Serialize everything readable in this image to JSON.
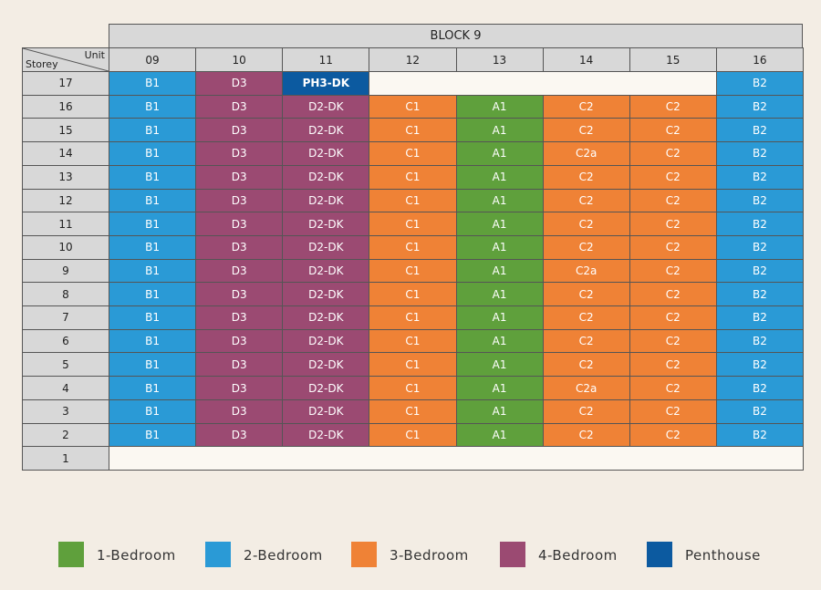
{
  "header": {
    "title": "BLOCK 9",
    "unit_label": "Unit",
    "storey_label": "Storey"
  },
  "columns": [
    "09",
    "10",
    "11",
    "12",
    "13",
    "14",
    "15",
    "16"
  ],
  "rows": [
    {
      "storey": "17",
      "cells": [
        [
          "B1",
          "#2a9ad6"
        ],
        [
          "D3",
          "#9b4a72"
        ],
        [
          "PH3-DK",
          "#0c5aa0"
        ],
        null,
        null,
        null,
        null,
        [
          "B2",
          "#2a9ad6"
        ]
      ]
    },
    {
      "storey": "16",
      "cells": [
        [
          "B1",
          "#2a9ad6"
        ],
        [
          "D3",
          "#9b4a72"
        ],
        [
          "D2-DK",
          "#9b4a72"
        ],
        [
          "C1",
          "#ef8236"
        ],
        [
          "A1",
          "#5fa03c"
        ],
        [
          "C2",
          "#ef8236"
        ],
        [
          "C2",
          "#ef8236"
        ],
        [
          "B2",
          "#2a9ad6"
        ]
      ]
    },
    {
      "storey": "15",
      "cells": [
        [
          "B1",
          "#2a9ad6"
        ],
        [
          "D3",
          "#9b4a72"
        ],
        [
          "D2-DK",
          "#9b4a72"
        ],
        [
          "C1",
          "#ef8236"
        ],
        [
          "A1",
          "#5fa03c"
        ],
        [
          "C2",
          "#ef8236"
        ],
        [
          "C2",
          "#ef8236"
        ],
        [
          "B2",
          "#2a9ad6"
        ]
      ]
    },
    {
      "storey": "14",
      "cells": [
        [
          "B1",
          "#2a9ad6"
        ],
        [
          "D3",
          "#9b4a72"
        ],
        [
          "D2-DK",
          "#9b4a72"
        ],
        [
          "C1",
          "#ef8236"
        ],
        [
          "A1",
          "#5fa03c"
        ],
        [
          "C2a",
          "#ef8236"
        ],
        [
          "C2",
          "#ef8236"
        ],
        [
          "B2",
          "#2a9ad6"
        ]
      ]
    },
    {
      "storey": "13",
      "cells": [
        [
          "B1",
          "#2a9ad6"
        ],
        [
          "D3",
          "#9b4a72"
        ],
        [
          "D2-DK",
          "#9b4a72"
        ],
        [
          "C1",
          "#ef8236"
        ],
        [
          "A1",
          "#5fa03c"
        ],
        [
          "C2",
          "#ef8236"
        ],
        [
          "C2",
          "#ef8236"
        ],
        [
          "B2",
          "#2a9ad6"
        ]
      ]
    },
    {
      "storey": "12",
      "cells": [
        [
          "B1",
          "#2a9ad6"
        ],
        [
          "D3",
          "#9b4a72"
        ],
        [
          "D2-DK",
          "#9b4a72"
        ],
        [
          "C1",
          "#ef8236"
        ],
        [
          "A1",
          "#5fa03c"
        ],
        [
          "C2",
          "#ef8236"
        ],
        [
          "C2",
          "#ef8236"
        ],
        [
          "B2",
          "#2a9ad6"
        ]
      ]
    },
    {
      "storey": "11",
      "cells": [
        [
          "B1",
          "#2a9ad6"
        ],
        [
          "D3",
          "#9b4a72"
        ],
        [
          "D2-DK",
          "#9b4a72"
        ],
        [
          "C1",
          "#ef8236"
        ],
        [
          "A1",
          "#5fa03c"
        ],
        [
          "C2",
          "#ef8236"
        ],
        [
          "C2",
          "#ef8236"
        ],
        [
          "B2",
          "#2a9ad6"
        ]
      ]
    },
    {
      "storey": "10",
      "cells": [
        [
          "B1",
          "#2a9ad6"
        ],
        [
          "D3",
          "#9b4a72"
        ],
        [
          "D2-DK",
          "#9b4a72"
        ],
        [
          "C1",
          "#ef8236"
        ],
        [
          "A1",
          "#5fa03c"
        ],
        [
          "C2",
          "#ef8236"
        ],
        [
          "C2",
          "#ef8236"
        ],
        [
          "B2",
          "#2a9ad6"
        ]
      ]
    },
    {
      "storey": "9",
      "cells": [
        [
          "B1",
          "#2a9ad6"
        ],
        [
          "D3",
          "#9b4a72"
        ],
        [
          "D2-DK",
          "#9b4a72"
        ],
        [
          "C1",
          "#ef8236"
        ],
        [
          "A1",
          "#5fa03c"
        ],
        [
          "C2a",
          "#ef8236"
        ],
        [
          "C2",
          "#ef8236"
        ],
        [
          "B2",
          "#2a9ad6"
        ]
      ]
    },
    {
      "storey": "8",
      "cells": [
        [
          "B1",
          "#2a9ad6"
        ],
        [
          "D3",
          "#9b4a72"
        ],
        [
          "D2-DK",
          "#9b4a72"
        ],
        [
          "C1",
          "#ef8236"
        ],
        [
          "A1",
          "#5fa03c"
        ],
        [
          "C2",
          "#ef8236"
        ],
        [
          "C2",
          "#ef8236"
        ],
        [
          "B2",
          "#2a9ad6"
        ]
      ]
    },
    {
      "storey": "7",
      "cells": [
        [
          "B1",
          "#2a9ad6"
        ],
        [
          "D3",
          "#9b4a72"
        ],
        [
          "D2-DK",
          "#9b4a72"
        ],
        [
          "C1",
          "#ef8236"
        ],
        [
          "A1",
          "#5fa03c"
        ],
        [
          "C2",
          "#ef8236"
        ],
        [
          "C2",
          "#ef8236"
        ],
        [
          "B2",
          "#2a9ad6"
        ]
      ]
    },
    {
      "storey": "6",
      "cells": [
        [
          "B1",
          "#2a9ad6"
        ],
        [
          "D3",
          "#9b4a72"
        ],
        [
          "D2-DK",
          "#9b4a72"
        ],
        [
          "C1",
          "#ef8236"
        ],
        [
          "A1",
          "#5fa03c"
        ],
        [
          "C2",
          "#ef8236"
        ],
        [
          "C2",
          "#ef8236"
        ],
        [
          "B2",
          "#2a9ad6"
        ]
      ]
    },
    {
      "storey": "5",
      "cells": [
        [
          "B1",
          "#2a9ad6"
        ],
        [
          "D3",
          "#9b4a72"
        ],
        [
          "D2-DK",
          "#9b4a72"
        ],
        [
          "C1",
          "#ef8236"
        ],
        [
          "A1",
          "#5fa03c"
        ],
        [
          "C2",
          "#ef8236"
        ],
        [
          "C2",
          "#ef8236"
        ],
        [
          "B2",
          "#2a9ad6"
        ]
      ]
    },
    {
      "storey": "4",
      "cells": [
        [
          "B1",
          "#2a9ad6"
        ],
        [
          "D3",
          "#9b4a72"
        ],
        [
          "D2-DK",
          "#9b4a72"
        ],
        [
          "C1",
          "#ef8236"
        ],
        [
          "A1",
          "#5fa03c"
        ],
        [
          "C2a",
          "#ef8236"
        ],
        [
          "C2",
          "#ef8236"
        ],
        [
          "B2",
          "#2a9ad6"
        ]
      ]
    },
    {
      "storey": "3",
      "cells": [
        [
          "B1",
          "#2a9ad6"
        ],
        [
          "D3",
          "#9b4a72"
        ],
        [
          "D2-DK",
          "#9b4a72"
        ],
        [
          "C1",
          "#ef8236"
        ],
        [
          "A1",
          "#5fa03c"
        ],
        [
          "C2",
          "#ef8236"
        ],
        [
          "C2",
          "#ef8236"
        ],
        [
          "B2",
          "#2a9ad6"
        ]
      ]
    },
    {
      "storey": "2",
      "cells": [
        [
          "B1",
          "#2a9ad6"
        ],
        [
          "D3",
          "#9b4a72"
        ],
        [
          "D2-DK",
          "#9b4a72"
        ],
        [
          "C1",
          "#ef8236"
        ],
        [
          "A1",
          "#5fa03c"
        ],
        [
          "C2",
          "#ef8236"
        ],
        [
          "C2",
          "#ef8236"
        ],
        [
          "B2",
          "#2a9ad6"
        ]
      ]
    },
    {
      "storey": "1",
      "cells": [
        null,
        null,
        null,
        null,
        null,
        null,
        null,
        null
      ]
    }
  ],
  "legend": [
    {
      "label": "1-Bedroom",
      "color": "#5fa03c"
    },
    {
      "label": "2-Bedroom",
      "color": "#2a9ad6"
    },
    {
      "label": "3-Bedroom",
      "color": "#ef8236"
    },
    {
      "label": "4-Bedroom",
      "color": "#9b4a72"
    },
    {
      "label": "Penthouse",
      "color": "#0c5aa0"
    }
  ]
}
